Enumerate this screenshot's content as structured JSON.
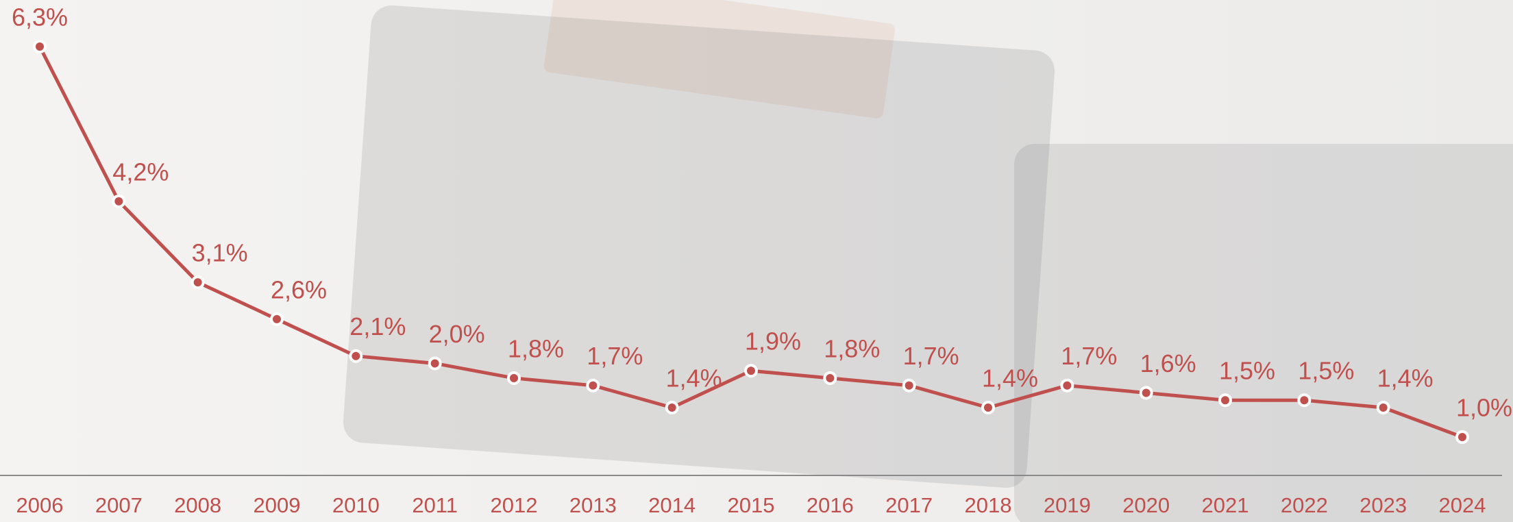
{
  "chart_data": {
    "type": "line",
    "categories": [
      "2006",
      "2007",
      "2008",
      "2009",
      "2010",
      "2011",
      "2012",
      "2013",
      "2014",
      "2015",
      "2016",
      "2017",
      "2018",
      "2019",
      "2020",
      "2021",
      "2022",
      "2023",
      "2024"
    ],
    "values": [
      6.3,
      4.2,
      3.1,
      2.6,
      2.1,
      2.0,
      1.8,
      1.7,
      1.4,
      1.9,
      1.8,
      1.7,
      1.4,
      1.7,
      1.6,
      1.5,
      1.5,
      1.4,
      1.0
    ],
    "value_labels": [
      "6,3%",
      "4,2%",
      "3,1%",
      "2,6%",
      "2,1%",
      "2,0%",
      "1,8%",
      "1,7%",
      "1,4%",
      "1,9%",
      "1,8%",
      "1,7%",
      "1,4%",
      "1,7%",
      "1,6%",
      "1,5%",
      "1,5%",
      "1,4%",
      "1,0%"
    ],
    "color": "#c0504d"
  }
}
